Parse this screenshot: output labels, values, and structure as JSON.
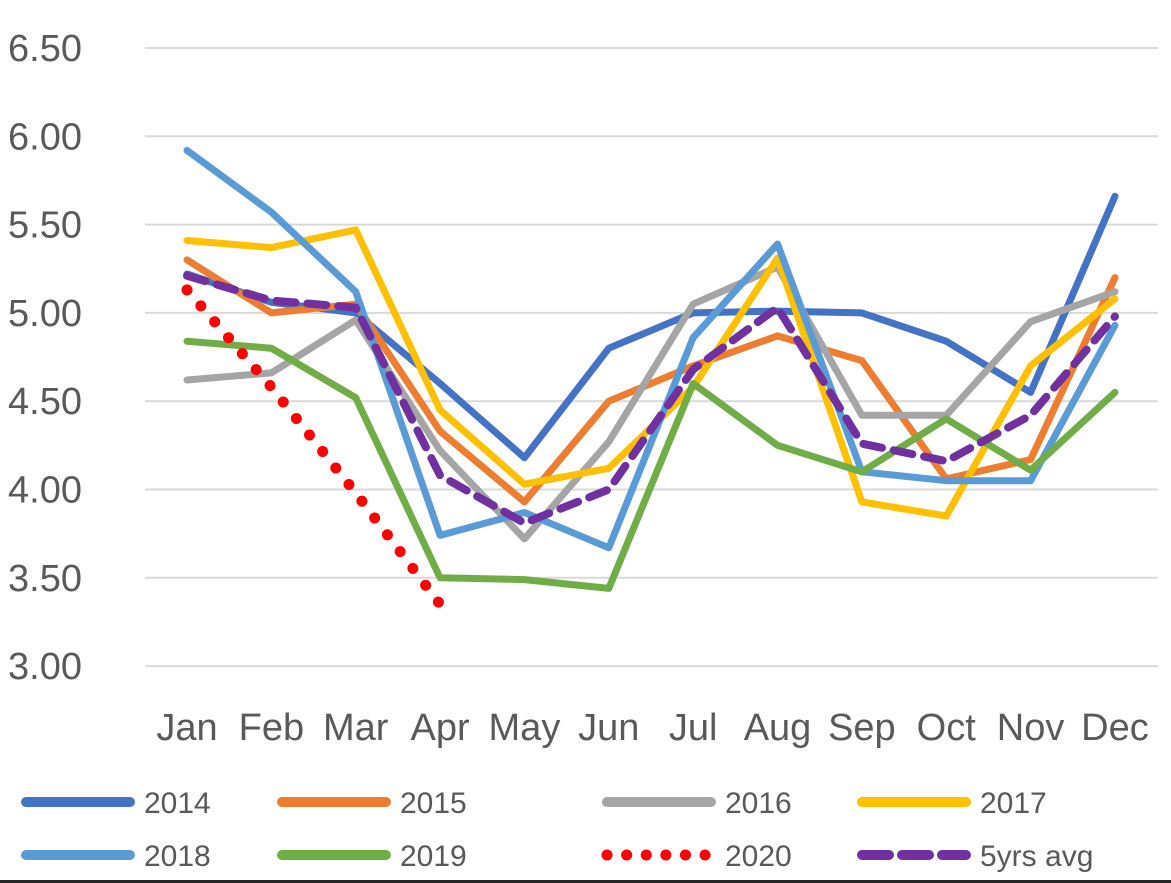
{
  "chart_data": {
    "type": "line",
    "title": "",
    "categories": [
      "Jan",
      "Feb",
      "Mar",
      "Apr",
      "May",
      "Jun",
      "Jul",
      "Aug",
      "Sep",
      "Oct",
      "Nov",
      "Dec"
    ],
    "y_axis": {
      "min": 3.0,
      "max": 6.5,
      "tick_step": 0.5,
      "tick_labels": [
        "6.50",
        "6.00",
        "5.50",
        "5.00",
        "4.50",
        "4.00",
        "3.50",
        "3.00"
      ]
    },
    "grid": true,
    "gridline_color": "#D9D9D9",
    "axis_text_color": "#595959",
    "legend_position": "bottom",
    "series": [
      {
        "name": "2014",
        "color": "#4472C4",
        "style": "solid",
        "values": [
          5.22,
          5.06,
          5.0,
          4.6,
          4.18,
          4.8,
          5.0,
          5.01,
          5.0,
          4.84,
          4.55,
          5.66
        ]
      },
      {
        "name": "2015",
        "color": "#ED7D31",
        "style": "solid",
        "values": [
          5.3,
          5.0,
          5.05,
          4.33,
          3.93,
          4.5,
          4.7,
          4.87,
          4.73,
          4.06,
          4.17,
          5.2
        ]
      },
      {
        "name": "2016",
        "color": "#A5A5A5",
        "style": "solid",
        "values": [
          4.62,
          4.66,
          4.96,
          4.22,
          3.72,
          4.27,
          5.05,
          5.26,
          4.42,
          4.42,
          4.95,
          5.12
        ]
      },
      {
        "name": "2017",
        "color": "#FFC000",
        "style": "solid",
        "values": [
          5.41,
          5.37,
          5.47,
          4.45,
          4.03,
          4.12,
          4.58,
          5.31,
          3.93,
          3.85,
          4.7,
          5.08
        ]
      },
      {
        "name": "2018",
        "color": "#5B9BD5",
        "style": "solid",
        "values": [
          5.92,
          5.57,
          5.12,
          3.74,
          3.87,
          3.67,
          4.86,
          5.39,
          4.1,
          4.05,
          4.05,
          4.93
        ]
      },
      {
        "name": "2019",
        "color": "#70AD47",
        "style": "solid",
        "values": [
          4.84,
          4.8,
          4.52,
          3.5,
          3.49,
          3.44,
          4.6,
          4.25,
          4.1,
          4.4,
          4.11,
          4.55
        ]
      },
      {
        "name": "2020",
        "color": "#FF0000",
        "style": "dotted",
        "values": [
          5.13,
          4.58,
          3.98,
          3.35
        ]
      },
      {
        "name": "5yrs avg",
        "color": "#7030A0",
        "style": "dashed",
        "values": [
          5.21,
          5.07,
          5.03,
          4.08,
          3.81,
          4.0,
          4.68,
          5.03,
          4.26,
          4.16,
          4.42,
          4.98
        ]
      }
    ]
  }
}
